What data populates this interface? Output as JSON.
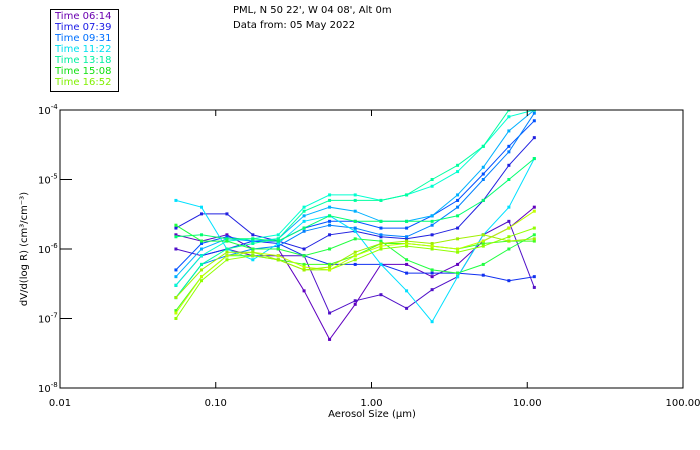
{
  "header": {
    "location": "PML, N 50 22', W 04 08', Alt 0m",
    "date": "Data from: 05 May 2022"
  },
  "legend": [
    {
      "label": "Time 06:14",
      "color": "#6a00b0"
    },
    {
      "label": "Time 07:39",
      "color": "#1a1ae6"
    },
    {
      "label": "Time 09:31",
      "color": "#0070ff"
    },
    {
      "label": "Time 11:22",
      "color": "#00e0f0"
    },
    {
      "label": "Time 13:18",
      "color": "#00f0a0"
    },
    {
      "label": "Time 15:08",
      "color": "#10e010"
    },
    {
      "label": "Time 16:52",
      "color": "#80f000"
    }
  ],
  "chart_data": {
    "type": "line",
    "xscale": "log",
    "yscale": "log",
    "xlabel": "Aerosol Size (µm)",
    "ylabel": "dV/d(log R) (cm³/cm⁻³)",
    "xlim": [
      0.01,
      100
    ],
    "ylim": [
      1e-08,
      0.0001
    ],
    "xticks": [
      {
        "v": 0.01,
        "label": "0.01"
      },
      {
        "v": 0.1,
        "label": "0.10"
      },
      {
        "v": 1,
        "label": "1.00"
      },
      {
        "v": 10,
        "label": "10.00"
      },
      {
        "v": 100,
        "label": "100.00"
      }
    ],
    "yticks": [
      {
        "v": 0.0001,
        "exp": "-4"
      },
      {
        "v": 1e-05,
        "exp": "-5"
      },
      {
        "v": 1e-06,
        "exp": "-6"
      },
      {
        "v": 1e-07,
        "exp": "-7"
      },
      {
        "v": 1e-08,
        "exp": "-8"
      }
    ],
    "x": [
      0.0555,
      0.081,
      0.118,
      0.173,
      0.252,
      0.369,
      0.538,
      0.786,
      1.15,
      1.68,
      2.45,
      3.57,
      5.22,
      7.62,
      11.1
    ],
    "series": [
      {
        "color": "#6000c0",
        "values": [
          1.6e-06,
          1.3e-06,
          1.6e-06,
          1e-06,
          1e-06,
          2.5e-07,
          5e-08,
          1.6e-07,
          6e-07,
          6e-07,
          4e-07,
          6e-07,
          1.3e-06,
          2e-06,
          4e-06
        ]
      },
      {
        "color": "#5010c8",
        "values": [
          1e-06,
          8e-07,
          1e-06,
          8e-07,
          8e-07,
          8e-07,
          1.2e-07,
          1.8e-07,
          2.2e-07,
          1.4e-07,
          2.6e-07,
          4e-07,
          1.6e-06,
          2.5e-06,
          2.8e-07
        ]
      },
      {
        "color": "#2020e0",
        "values": [
          2e-06,
          3.2e-06,
          3.2e-06,
          1.6e-06,
          1.3e-06,
          1e-06,
          1.6e-06,
          1.8e-06,
          1.5e-06,
          1.4e-06,
          1.6e-06,
          2e-06,
          5e-06,
          1.6e-05,
          4e-05
        ]
      },
      {
        "color": "#1030f0",
        "values": [
          3e-07,
          8e-07,
          1e-06,
          1.3e-06,
          1.2e-06,
          8e-07,
          6e-07,
          6e-07,
          6e-07,
          4.5e-07,
          4.5e-07,
          4.5e-07,
          4.2e-07,
          3.5e-07,
          4e-07
        ]
      },
      {
        "color": "#0050ff",
        "values": [
          5e-07,
          1.2e-06,
          1.5e-06,
          1.3e-06,
          1.3e-06,
          2e-06,
          2.5e-06,
          2.5e-06,
          2e-06,
          2e-06,
          3e-06,
          5e-06,
          1.2e-05,
          3e-05,
          7e-05
        ]
      },
      {
        "color": "#0080ff",
        "values": [
          2e-07,
          6e-07,
          8e-07,
          1e-06,
          1.1e-06,
          1.8e-06,
          2.2e-06,
          2e-06,
          1.6e-06,
          1.5e-06,
          2.2e-06,
          4e-06,
          1e-05,
          2.5e-05,
          9e-05
        ]
      },
      {
        "color": "#00b0ff",
        "values": [
          4e-07,
          1e-06,
          1.4e-06,
          1.3e-06,
          1.4e-06,
          3e-06,
          4e-06,
          3.5e-06,
          2.5e-06,
          2.5e-06,
          3e-06,
          6e-06,
          1.5e-05,
          5e-05,
          0.0001
        ]
      },
      {
        "color": "#00e0ff",
        "values": [
          5e-06,
          4e-06,
          1e-06,
          7e-07,
          1.2e-06,
          2.5e-06,
          3e-06,
          1.8e-06,
          6e-07,
          2.5e-07,
          9e-08,
          4e-07,
          1.6e-06,
          4e-06,
          2e-05
        ]
      },
      {
        "color": "#00ffd0",
        "values": [
          3e-07,
          8e-07,
          1.3e-06,
          1.4e-06,
          1.6e-06,
          4e-06,
          6e-06,
          6e-06,
          5e-06,
          6e-06,
          8e-06,
          1.3e-05,
          3e-05,
          8e-05,
          0.0001
        ]
      },
      {
        "color": "#00ffa0",
        "values": [
          2e-07,
          6e-07,
          1e-06,
          1.2e-06,
          1.4e-06,
          3.5e-06,
          5e-06,
          5e-06,
          5e-06,
          6e-06,
          1e-05,
          1.6e-05,
          3e-05,
          0.0001,
          0.0001
        ]
      },
      {
        "color": "#00ff70",
        "values": [
          1.5e-06,
          1.6e-06,
          1.4e-06,
          1.4e-06,
          1.3e-06,
          2e-06,
          3e-06,
          2.5e-06,
          2.5e-06,
          2.5e-06,
          2.5e-06,
          3e-06,
          5e-06,
          1e-05,
          2e-05
        ]
      },
      {
        "color": "#20ff40",
        "values": [
          2.2e-06,
          1.3e-06,
          1.3e-06,
          1e-06,
          1e-06,
          8e-07,
          1e-06,
          1.4e-06,
          1.3e-06,
          7e-07,
          5e-07,
          4.5e-07,
          6e-07,
          1e-06,
          1.6e-06
        ]
      },
      {
        "color": "#40ff20",
        "values": [
          1.3e-07,
          4e-07,
          8e-07,
          8e-07,
          7e-07,
          6e-07,
          6e-07,
          8e-07,
          1.2e-06,
          1.2e-06,
          1.1e-06,
          1e-06,
          1.2e-06,
          1.3e-06,
          1.3e-06
        ]
      },
      {
        "color": "#90ff00",
        "values": [
          1e-07,
          3.5e-07,
          7e-07,
          8e-07,
          7e-07,
          5e-07,
          5e-07,
          7e-07,
          1e-06,
          1.1e-06,
          1e-06,
          9e-07,
          1.1e-06,
          1.5e-06,
          2e-06
        ]
      },
      {
        "color": "#c0ff00",
        "values": [
          1.2e-07,
          4e-07,
          8e-07,
          9e-07,
          8e-07,
          5.5e-07,
          5e-07,
          8e-07,
          1.1e-06,
          1.2e-06,
          1.1e-06,
          1e-06,
          1.3e-06,
          2e-06,
          3.5e-06
        ]
      },
      {
        "color": "#a0f000",
        "values": [
          2e-07,
          5e-07,
          9e-07,
          9e-07,
          7e-07,
          5e-07,
          5.5e-07,
          9e-07,
          1.2e-06,
          1.3e-06,
          1.2e-06,
          1.4e-06,
          1.6e-06,
          1.3e-06,
          1.4e-06
        ]
      }
    ]
  }
}
